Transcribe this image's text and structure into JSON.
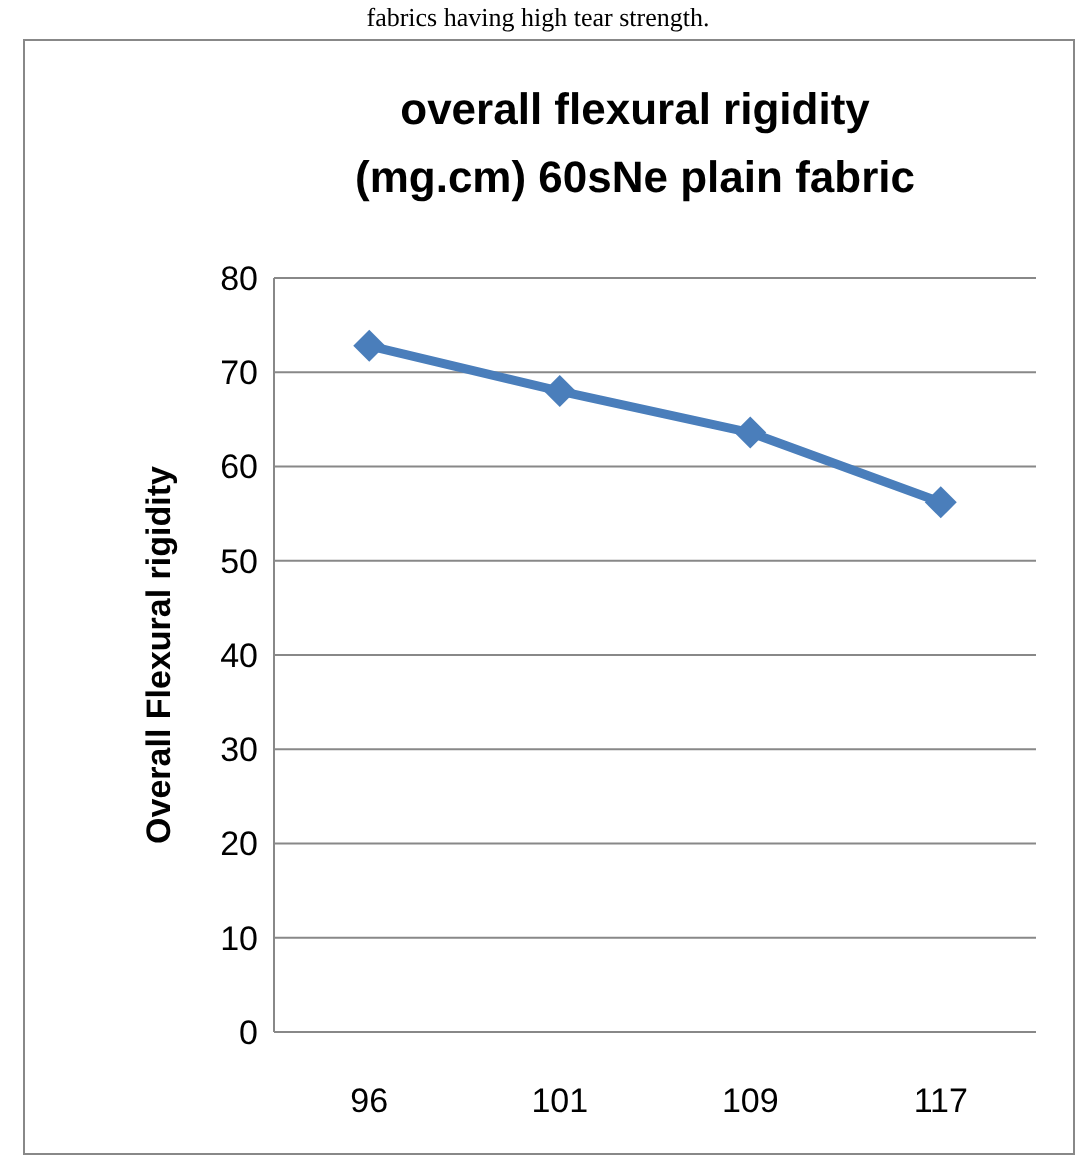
{
  "chart_data": {
    "type": "line",
    "title": "overall flexural rigidity (mg.cm) 60sNe plain fabric",
    "ylabel": "Overall Flexural rigidity",
    "annotations": [
      "fabrics having high tear strength."
    ],
    "categories": [
      "96",
      "101",
      "109",
      "117"
    ],
    "series": [
      {
        "color": "#4a7ebb",
        "values": [
          72.8,
          68.0,
          63.6,
          56.2
        ]
      }
    ],
    "ylim": [
      0,
      80
    ],
    "yticks": [
      0,
      10,
      20,
      30,
      40,
      50,
      60,
      70,
      80
    ],
    "grid": "y",
    "marker": "diamond",
    "line_style": "solid"
  }
}
